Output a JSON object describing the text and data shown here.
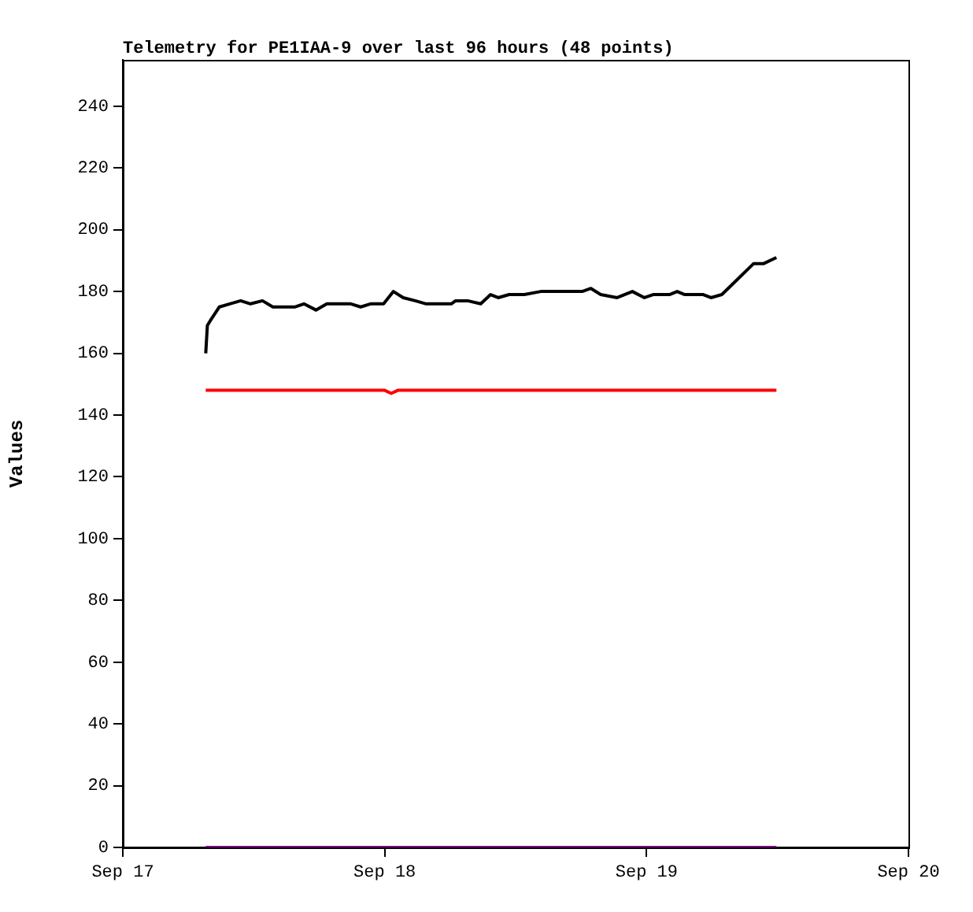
{
  "chart_data": {
    "type": "line",
    "title": "Telemetry for PE1IAA-9 over last 96 hours (48 points)",
    "ylabel": "Values",
    "xlim": [
      "--09-17",
      "--09-20"
    ],
    "xticks": [
      {
        "value": "--09-17",
        "label": "Sep 17"
      },
      {
        "value": "--09-18",
        "label": "Sep 18"
      },
      {
        "value": "--09-19",
        "label": "Sep 19"
      },
      {
        "value": "--09-20",
        "label": "Sep 20"
      }
    ],
    "ylim": [
      0,
      255
    ],
    "yticks": [
      0,
      20,
      40,
      60,
      80,
      100,
      120,
      140,
      160,
      180,
      200,
      220,
      240
    ],
    "grid": false,
    "legend": false,
    "marker": "none",
    "line_style": "solid",
    "series": [
      {
        "color": "#000000",
        "x": [
          "--09-17T07:36",
          "--09-17T07:45",
          "--09-17T08:06",
          "--09-17T08:51",
          "--09-17T09:48",
          "--09-17T10:48",
          "--09-17T11:42",
          "--09-17T12:48",
          "--09-17T13:45",
          "--09-17T15:48",
          "--09-17T16:36",
          "--09-17T17:42",
          "--09-17T18:42",
          "--09-17T20:54",
          "--09-17T21:48",
          "--09-17T22:42",
          "--09-17T23:54",
          "--09-18T00:48",
          "--09-18T01:42",
          "--09-18T02:48",
          "--09-18T03:48",
          "--09-18T06:06",
          "--09-18T06:30",
          "--09-18T07:36",
          "--09-18T08:48",
          "--09-18T09:24",
          "--09-18T09:42",
          "--09-18T10:24",
          "--09-18T11:24",
          "--09-18T12:48",
          "--09-18T14:18",
          "--09-18T18:06",
          "--09-18T18:54",
          "--09-18T19:48",
          "--09-18T21:18",
          "--09-18T22:42",
          "--09-18T23:48",
          "--09-19T00:36",
          "--09-19T02:06",
          "--09-19T02:48",
          "--09-19T03:30",
          "--09-19T05:12",
          "--09-19T05:54",
          "--09-19T06:54",
          "--09-19T09:48",
          "--09-19T10:42",
          "--09-19T11:54"
        ],
        "values": [
          160,
          169,
          171,
          175,
          176,
          177,
          176,
          177,
          175,
          175,
          176,
          174,
          176,
          176,
          175,
          176,
          176,
          180,
          178,
          177,
          176,
          176,
          177,
          177,
          176,
          178,
          179,
          178,
          179,
          179,
          180,
          180,
          181,
          179,
          178,
          180,
          178,
          179,
          179,
          180,
          179,
          179,
          178,
          179,
          189,
          189,
          191
        ]
      },
      {
        "color": "#ff0000",
        "x": [
          "--09-17T07:36",
          "--09-18T00:00",
          "--09-18T00:36",
          "--09-18T01:12",
          "--09-19T11:54"
        ],
        "values": [
          148,
          148,
          147,
          148,
          148
        ]
      },
      {
        "color": "#800080",
        "x": [
          "--09-17T07:36",
          "--09-19T11:54"
        ],
        "values": [
          0,
          0
        ]
      }
    ]
  }
}
